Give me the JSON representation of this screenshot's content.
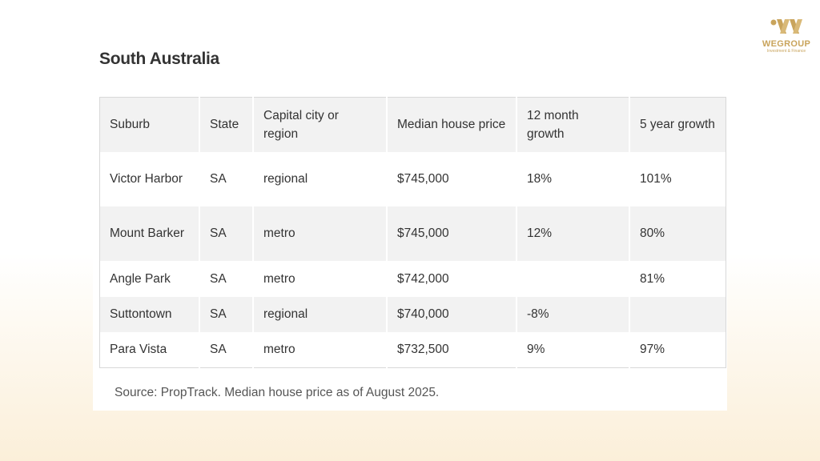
{
  "logo": {
    "name": "WEGROUP",
    "tagline": "Investment & Finance"
  },
  "header": {
    "title": "South Australia"
  },
  "table": {
    "columns": [
      "Suburb",
      "State",
      "Capital city or region",
      "Median house price",
      "12 month growth",
      "5 year growth"
    ],
    "rows": [
      [
        "Victor Harbor",
        "SA",
        "regional",
        "$745,000",
        "18%",
        "101%"
      ],
      [
        "Mount Barker",
        "SA",
        "metro",
        "$745,000",
        "12%",
        "80%"
      ],
      [
        "Angle Park",
        "SA",
        "metro",
        "$742,000",
        null,
        "81%"
      ],
      [
        "Suttontown",
        "SA",
        "regional",
        "$740,000",
        "-8%",
        null
      ],
      [
        "Para Vista",
        "SA",
        "metro",
        "$732,500",
        "9%",
        "97%"
      ]
    ]
  },
  "footer": {
    "source": "Source: PropTrack. Median house price as of August 2025."
  }
}
